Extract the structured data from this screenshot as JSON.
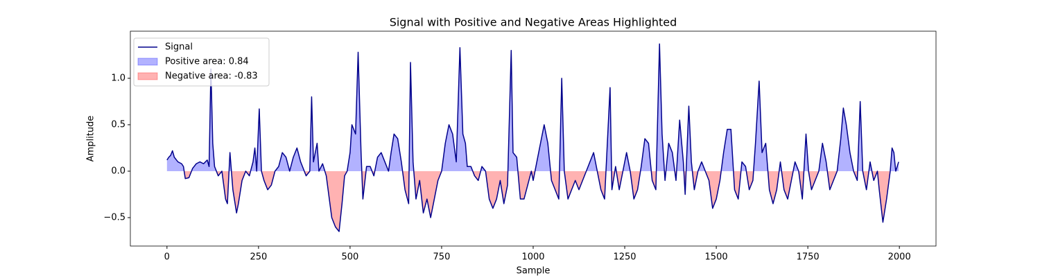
{
  "chart_data": {
    "type": "line",
    "title": "Signal with Positive and Negative Areas Highlighted",
    "xlabel": "Sample",
    "ylabel": "Amplitude",
    "x": [
      0,
      5,
      10,
      15,
      20,
      30,
      40,
      45,
      50,
      60,
      70,
      80,
      90,
      100,
      110,
      115,
      120,
      125,
      130,
      140,
      150,
      160,
      165,
      172,
      180,
      190,
      195,
      205,
      215,
      225,
      235,
      240,
      245,
      252,
      258,
      265,
      275,
      285,
      295,
      305,
      315,
      325,
      335,
      345,
      355,
      365,
      370,
      380,
      390,
      395,
      400,
      410,
      415,
      425,
      435,
      450,
      460,
      470,
      478,
      485,
      492,
      500,
      505,
      515,
      522,
      530,
      535,
      545,
      555,
      565,
      575,
      585,
      595,
      605,
      612,
      620,
      630,
      640,
      650,
      660,
      665,
      672,
      680,
      690,
      700,
      710,
      720,
      730,
      740,
      750,
      760,
      770,
      780,
      790,
      800,
      808,
      815,
      820,
      830,
      840,
      850,
      860,
      870,
      880,
      890,
      900,
      910,
      920,
      930,
      940,
      945,
      955,
      965,
      975,
      985,
      995,
      1000,
      1010,
      1020,
      1030,
      1040,
      1050,
      1060,
      1070,
      1078,
      1085,
      1095,
      1105,
      1115,
      1125,
      1135,
      1145,
      1155,
      1165,
      1175,
      1185,
      1195,
      1210,
      1215,
      1225,
      1235,
      1245,
      1255,
      1265,
      1275,
      1285,
      1295,
      1305,
      1315,
      1325,
      1335,
      1345,
      1352,
      1360,
      1370,
      1380,
      1390,
      1400,
      1410,
      1415,
      1425,
      1432,
      1440,
      1450,
      1460,
      1470,
      1480,
      1490,
      1500,
      1510,
      1520,
      1530,
      1540,
      1550,
      1560,
      1570,
      1580,
      1590,
      1600,
      1607,
      1617,
      1625,
      1635,
      1645,
      1655,
      1665,
      1675,
      1685,
      1695,
      1705,
      1715,
      1725,
      1735,
      1745,
      1752,
      1760,
      1770,
      1780,
      1790,
      1800,
      1810,
      1820,
      1830,
      1840,
      1847,
      1855,
      1865,
      1875,
      1885,
      1893,
      1900,
      1910,
      1920,
      1930,
      1940,
      1945,
      1955,
      1965,
      1975,
      1980,
      1985,
      1990,
      1998
    ],
    "series": [
      {
        "name": "Signal",
        "color": "#00008b",
        "values": [
          0.12,
          0.15,
          0.17,
          0.22,
          0.15,
          0.1,
          0.08,
          0.05,
          -0.08,
          -0.07,
          0.03,
          0.08,
          0.1,
          0.08,
          0.12,
          0.05,
          1.1,
          0.3,
          0.05,
          -0.05,
          0.0,
          -0.3,
          -0.35,
          0.2,
          -0.2,
          -0.45,
          -0.35,
          -0.1,
          0.0,
          -0.05,
          0.1,
          0.25,
          0.0,
          0.67,
          0.0,
          -0.1,
          -0.2,
          -0.15,
          0.0,
          0.05,
          0.2,
          0.15,
          0.0,
          0.15,
          0.25,
          0.1,
          0.05,
          -0.05,
          0.0,
          0.8,
          0.1,
          0.3,
          0.0,
          0.08,
          -0.05,
          -0.5,
          -0.6,
          -0.65,
          -0.35,
          -0.05,
          0.0,
          0.2,
          0.5,
          0.4,
          1.28,
          0.2,
          -0.3,
          0.05,
          0.05,
          -0.05,
          0.15,
          0.2,
          0.1,
          0.0,
          0.2,
          0.4,
          0.35,
          0.1,
          -0.2,
          -0.35,
          1.17,
          0.1,
          -0.3,
          -0.1,
          -0.45,
          -0.3,
          -0.5,
          -0.3,
          -0.1,
          0.0,
          0.3,
          0.5,
          0.4,
          0.1,
          1.33,
          0.4,
          0.3,
          0.05,
          0.05,
          -0.05,
          -0.1,
          0.05,
          0.0,
          -0.3,
          -0.4,
          -0.3,
          -0.1,
          -0.35,
          -0.15,
          1.3,
          0.2,
          0.15,
          -0.3,
          -0.3,
          -0.15,
          0.0,
          -0.1,
          0.1,
          0.3,
          0.5,
          0.3,
          -0.1,
          -0.2,
          -0.3,
          1.0,
          0.0,
          -0.3,
          -0.2,
          -0.1,
          -0.2,
          -0.1,
          0.0,
          0.1,
          0.2,
          0.0,
          -0.2,
          -0.3,
          0.9,
          -0.2,
          0.05,
          -0.2,
          0.0,
          0.2,
          0.0,
          -0.3,
          -0.2,
          0.05,
          0.35,
          0.3,
          -0.1,
          -0.2,
          1.37,
          0.4,
          -0.1,
          0.3,
          0.2,
          -0.1,
          0.55,
          0.1,
          -0.25,
          0.7,
          0.1,
          -0.2,
          0.0,
          0.1,
          0.0,
          -0.1,
          -0.4,
          -0.3,
          -0.1,
          0.2,
          0.45,
          0.45,
          -0.2,
          -0.3,
          0.1,
          0.05,
          -0.2,
          -0.1,
          0.3,
          0.97,
          0.2,
          0.3,
          -0.2,
          -0.35,
          -0.2,
          0.1,
          -0.2,
          -0.3,
          -0.1,
          0.1,
          0.0,
          -0.3,
          0.4,
          0.0,
          -0.2,
          -0.1,
          0.0,
          0.3,
          0.1,
          -0.2,
          -0.1,
          0.0,
          0.35,
          0.68,
          0.5,
          0.2,
          0.0,
          -0.1,
          0.75,
          0.0,
          -0.2,
          0.1,
          -0.1,
          0.0,
          -0.2,
          -0.55,
          -0.3,
          0.0,
          0.25,
          0.2,
          0.0,
          0.1
        ]
      }
    ],
    "areas": [
      {
        "name": "Positive area: 0.84",
        "color": "#0000ff"
      },
      {
        "name": "Negative area: -0.83",
        "color": "#ff0000"
      }
    ],
    "xlim": [
      -100,
      2100
    ],
    "xticks": [
      0,
      250,
      500,
      750,
      1000,
      1250,
      1500,
      1750,
      2000
    ],
    "ylim": [
      -0.806,
      1.507
    ],
    "yticks": [
      {
        "value": -0.5,
        "label": "−0.5"
      },
      {
        "value": 0,
        "label": "0.0"
      },
      {
        "value": 0.5,
        "label": "0.5"
      },
      {
        "value": 1,
        "label": "1.0"
      }
    ],
    "legend": "upper left"
  }
}
